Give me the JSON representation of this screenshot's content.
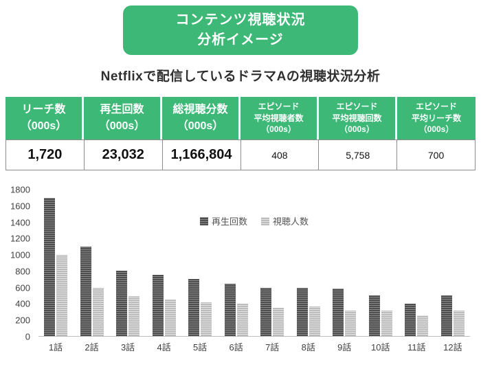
{
  "banner": {
    "line1": "コンテンツ視聴状況",
    "line2": "分析イメージ"
  },
  "page_title": "Netflixで配信しているドラマAの視聴状況分析",
  "summary_table": {
    "columns": [
      {
        "header_lines": [
          "リーチ数",
          "（000s）"
        ],
        "value": "1,720"
      },
      {
        "header_lines": [
          "再生回数",
          "（000s）"
        ],
        "value": "23,032"
      },
      {
        "header_lines": [
          "総視聴分数",
          "（000s）"
        ],
        "value": "1,166,804"
      },
      {
        "header_lines": [
          "エピソード",
          "平均視聴者数",
          "（000s）"
        ],
        "value": "408"
      },
      {
        "header_lines": [
          "エピソード",
          "平均視聴回数",
          "（000s）"
        ],
        "value": "5,758"
      },
      {
        "header_lines": [
          "エピソード",
          "平均リーチ数",
          "（000s）"
        ],
        "value": "700"
      }
    ]
  },
  "chart_data": {
    "type": "bar",
    "categories": [
      "1話",
      "2話",
      "3話",
      "4話",
      "5話",
      "6話",
      "7話",
      "8話",
      "9話",
      "10話",
      "11話",
      "12話"
    ],
    "series": [
      {
        "name": "再生回数",
        "values": [
          1700,
          1100,
          800,
          750,
          700,
          640,
          590,
          590,
          580,
          500,
          400,
          500
        ],
        "color": "#595959"
      },
      {
        "name": "視聴人数",
        "values": [
          1000,
          590,
          490,
          450,
          410,
          400,
          350,
          360,
          310,
          310,
          250,
          310
        ],
        "color": "#c6c6c6"
      }
    ],
    "title": "",
    "xlabel": "",
    "ylabel": "",
    "ylim": [
      0,
      1800
    ],
    "ytick_step": 200,
    "grid": false,
    "legend_position": "inside-top-center"
  },
  "colors": {
    "accent_green": "#3eb877",
    "dark_bar": "#595959",
    "light_bar": "#c6c6c6"
  }
}
